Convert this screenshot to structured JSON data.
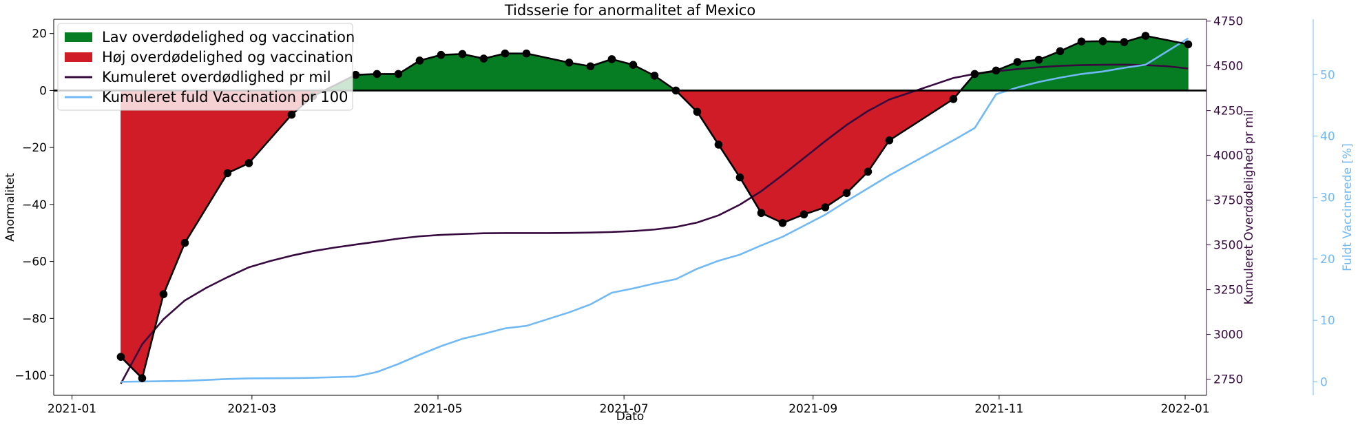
{
  "chart_data": {
    "type": "line",
    "title": "Tidsserie for anormalitet af Mexico",
    "xlabel": "Dato",
    "ylabel_left": "Anormalitet",
    "ylabel_right1": "Kumuleret Overdødelighed pr mil",
    "ylabel_right2": "Fuldt Vaccinerede [%]",
    "x_ticks": [
      "2021-01",
      "2021-03",
      "2021-05",
      "2021-07",
      "2021-09",
      "2021-11",
      "2022-01"
    ],
    "x_tick_dates": [
      "2021-01-01",
      "2021-03-01",
      "2021-05-01",
      "2021-07-01",
      "2021-09-01",
      "2021-11-01",
      "2022-01-01"
    ],
    "xlim": [
      "2020-12-26",
      "2022-01-08"
    ],
    "ylim_left": [
      -107,
      25
    ],
    "yticks_left": [
      20,
      0,
      -20,
      -40,
      -60,
      -80,
      -100
    ],
    "ylim_right1": [
      2660,
      4760
    ],
    "yticks_right1": [
      4750,
      4500,
      4250,
      4000,
      3750,
      3500,
      3250,
      3000,
      2750
    ],
    "ylim_right2": [
      -2.2,
      59
    ],
    "yticks_right2": [
      50,
      40,
      30,
      20,
      10,
      0
    ],
    "colors": {
      "positive_fill": "#067d23",
      "negative_fill": "#d01c27",
      "anomaly_line": "#000000",
      "mortality_line": "#36093f",
      "vaccination_line": "#70b9f4",
      "zero_line": "#000000"
    },
    "legend": {
      "placement": "top-left",
      "entries": [
        "Lav overdødelighed og vaccination",
        "Høj overdødelighed og vaccination",
        "Kumuleret overdødlighed pr mil",
        "Kumuleret fuld Vaccination pr 100"
      ]
    },
    "series": [
      {
        "key": "anomaly",
        "axis": "left",
        "points": [
          [
            "2021-01-17",
            -93.5
          ],
          [
            "2021-01-24",
            -101
          ],
          [
            "2021-01-31",
            -71.5
          ],
          [
            "2021-02-07",
            -53.5
          ],
          [
            "2021-02-21",
            -29
          ],
          [
            "2021-02-28",
            -25.5
          ],
          [
            "2021-03-14",
            -8.5
          ],
          [
            "2021-03-21",
            -2
          ],
          [
            "2021-04-04",
            5.5
          ],
          [
            "2021-04-11",
            5.8
          ],
          [
            "2021-04-18",
            5.8
          ],
          [
            "2021-04-25",
            10.5
          ],
          [
            "2021-05-02",
            12.5
          ],
          [
            "2021-05-09",
            12.8
          ],
          [
            "2021-05-16",
            11.2
          ],
          [
            "2021-05-23",
            13
          ],
          [
            "2021-05-30",
            13
          ],
          [
            "2021-06-13",
            9.8
          ],
          [
            "2021-06-20",
            8.5
          ],
          [
            "2021-06-27",
            11
          ],
          [
            "2021-07-04",
            9
          ],
          [
            "2021-07-11",
            5.2
          ],
          [
            "2021-07-18",
            0
          ],
          [
            "2021-07-25",
            -7.5
          ],
          [
            "2021-08-01",
            -19
          ],
          [
            "2021-08-08",
            -30.5
          ],
          [
            "2021-08-15",
            -43
          ],
          [
            "2021-08-22",
            -46.5
          ],
          [
            "2021-08-29",
            -43.5
          ],
          [
            "2021-09-05",
            -41
          ],
          [
            "2021-09-12",
            -36
          ],
          [
            "2021-09-19",
            -28.5
          ],
          [
            "2021-09-26",
            -17.5
          ],
          [
            "2021-10-17",
            -3
          ],
          [
            "2021-10-24",
            5.8
          ],
          [
            "2021-10-31",
            7
          ],
          [
            "2021-11-07",
            10
          ],
          [
            "2021-11-14",
            10.8
          ],
          [
            "2021-11-21",
            13.8
          ],
          [
            "2021-11-28",
            17.2
          ],
          [
            "2021-12-05",
            17.3
          ],
          [
            "2021-12-12",
            17
          ],
          [
            "2021-12-19",
            19.2
          ],
          [
            "2022-01-02",
            16.2
          ]
        ]
      },
      {
        "key": "mortality",
        "axis": "right1",
        "points": [
          [
            "2021-01-17",
            2725
          ],
          [
            "2021-01-24",
            2945
          ],
          [
            "2021-01-31",
            3085
          ],
          [
            "2021-02-07",
            3190
          ],
          [
            "2021-02-14",
            3260
          ],
          [
            "2021-02-21",
            3320
          ],
          [
            "2021-02-28",
            3375
          ],
          [
            "2021-03-07",
            3410
          ],
          [
            "2021-03-14",
            3440
          ],
          [
            "2021-03-21",
            3465
          ],
          [
            "2021-03-28",
            3485
          ],
          [
            "2021-04-04",
            3502
          ],
          [
            "2021-04-11",
            3518
          ],
          [
            "2021-04-18",
            3535
          ],
          [
            "2021-04-25",
            3548
          ],
          [
            "2021-05-02",
            3556
          ],
          [
            "2021-05-09",
            3561
          ],
          [
            "2021-05-16",
            3565
          ],
          [
            "2021-05-23",
            3566
          ],
          [
            "2021-05-30",
            3566
          ],
          [
            "2021-06-06",
            3566
          ],
          [
            "2021-06-13",
            3567
          ],
          [
            "2021-06-20",
            3569
          ],
          [
            "2021-06-27",
            3572
          ],
          [
            "2021-07-04",
            3577
          ],
          [
            "2021-07-11",
            3586
          ],
          [
            "2021-07-18",
            3600
          ],
          [
            "2021-07-25",
            3625
          ],
          [
            "2021-08-01",
            3665
          ],
          [
            "2021-08-08",
            3725
          ],
          [
            "2021-08-15",
            3800
          ],
          [
            "2021-08-22",
            3890
          ],
          [
            "2021-08-29",
            3985
          ],
          [
            "2021-09-05",
            4080
          ],
          [
            "2021-09-12",
            4170
          ],
          [
            "2021-09-19",
            4248
          ],
          [
            "2021-09-26",
            4312
          ],
          [
            "2021-10-03",
            4352
          ],
          [
            "2021-10-10",
            4392
          ],
          [
            "2021-10-17",
            4432
          ],
          [
            "2021-10-24",
            4455
          ],
          [
            "2021-10-31",
            4470
          ],
          [
            "2021-11-07",
            4482
          ],
          [
            "2021-11-14",
            4492
          ],
          [
            "2021-11-21",
            4500
          ],
          [
            "2021-11-28",
            4504
          ],
          [
            "2021-12-05",
            4506
          ],
          [
            "2021-12-12",
            4507
          ],
          [
            "2021-12-19",
            4504
          ],
          [
            "2021-12-26",
            4498
          ],
          [
            "2022-01-02",
            4485
          ]
        ]
      },
      {
        "key": "vaccination",
        "axis": "right2",
        "points": [
          [
            "2021-01-17",
            0.0
          ],
          [
            "2021-01-24",
            0.05
          ],
          [
            "2021-01-31",
            0.1
          ],
          [
            "2021-02-07",
            0.15
          ],
          [
            "2021-02-21",
            0.45
          ],
          [
            "2021-02-28",
            0.55
          ],
          [
            "2021-03-14",
            0.6
          ],
          [
            "2021-03-21",
            0.65
          ],
          [
            "2021-04-04",
            0.85
          ],
          [
            "2021-04-11",
            1.6
          ],
          [
            "2021-04-18",
            2.9
          ],
          [
            "2021-04-25",
            4.4
          ],
          [
            "2021-05-02",
            5.8
          ],
          [
            "2021-05-09",
            7.0
          ],
          [
            "2021-05-16",
            7.8
          ],
          [
            "2021-05-23",
            8.7
          ],
          [
            "2021-05-30",
            9.1
          ],
          [
            "2021-06-13",
            11.3
          ],
          [
            "2021-06-20",
            12.6
          ],
          [
            "2021-06-27",
            14.5
          ],
          [
            "2021-07-04",
            15.2
          ],
          [
            "2021-07-11",
            16.0
          ],
          [
            "2021-07-18",
            16.7
          ],
          [
            "2021-07-25",
            18.4
          ],
          [
            "2021-08-01",
            19.7
          ],
          [
            "2021-08-08",
            20.7
          ],
          [
            "2021-08-15",
            22.2
          ],
          [
            "2021-08-22",
            23.6
          ],
          [
            "2021-08-29",
            25.4
          ],
          [
            "2021-09-05",
            27.2
          ],
          [
            "2021-09-12",
            29.4
          ],
          [
            "2021-09-19",
            31.5
          ],
          [
            "2021-09-26",
            33.6
          ],
          [
            "2021-10-17",
            39.3
          ],
          [
            "2021-10-24",
            41.3
          ],
          [
            "2021-10-31",
            46.8
          ],
          [
            "2021-11-07",
            47.9
          ],
          [
            "2021-11-14",
            48.8
          ],
          [
            "2021-11-21",
            49.5
          ],
          [
            "2021-11-28",
            50.1
          ],
          [
            "2021-12-05",
            50.5
          ],
          [
            "2021-12-12",
            51.1
          ],
          [
            "2021-12-19",
            51.6
          ],
          [
            "2022-01-02",
            55.9
          ]
        ]
      }
    ]
  }
}
